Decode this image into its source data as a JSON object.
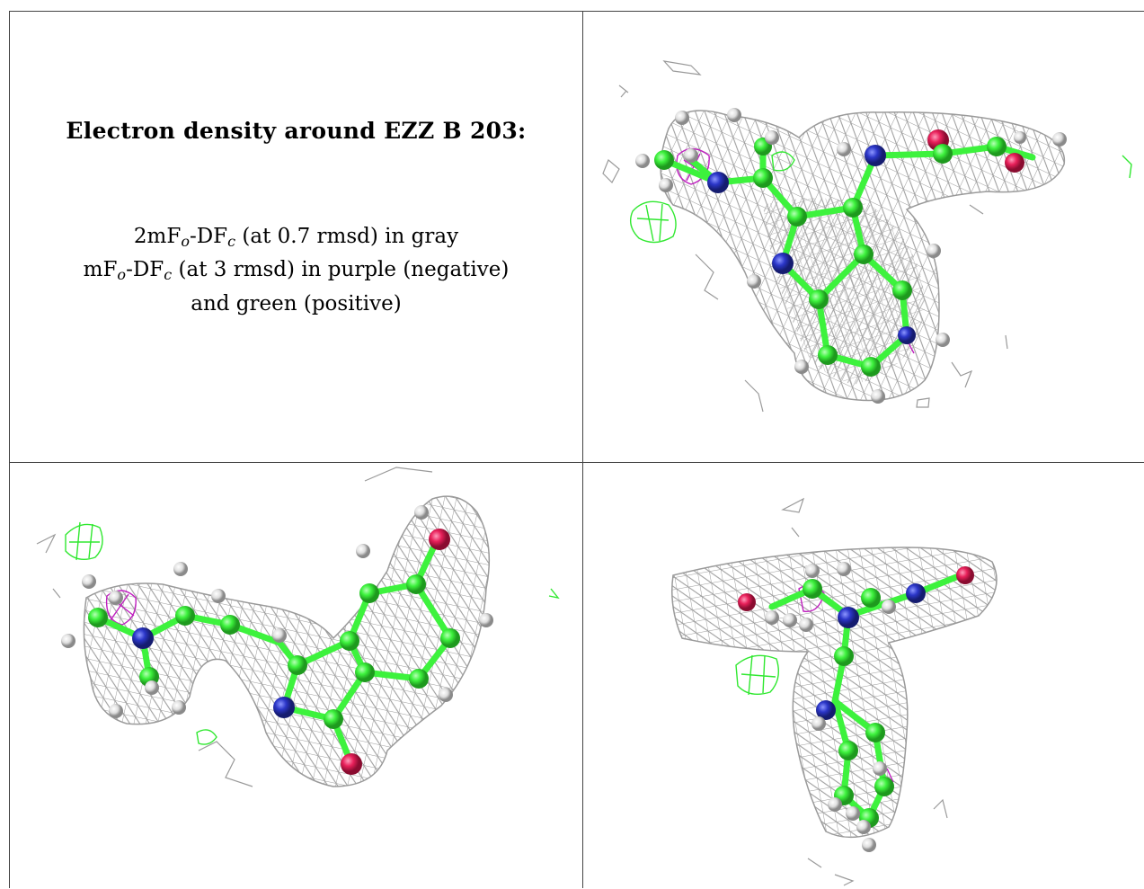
{
  "caption": {
    "title": "Electron density around EZZ B 203:",
    "line1": {
      "a": "2mF",
      "a_sub": "o",
      "b": "-DF",
      "b_sub": "c",
      "rest": " (at 0.7 rmsd) in gray"
    },
    "line2": {
      "a": "mF",
      "a_sub": "o",
      "b": "-DF",
      "b_sub": "c",
      "rest": " (at 3 rmsd) in purple (negative)"
    },
    "line3": "and green (positive)"
  },
  "colors": {
    "mesh_gray": "#9a9a9a",
    "carbon_green": "#3df23d",
    "nitrogen_blue": "#2b36c8",
    "oxygen_red": "#e8205a",
    "hydrogen_white": "#dedede",
    "negative_purple": "#c020c0",
    "positive_green": "#30e830"
  },
  "views": [
    {
      "name": "top-right-view"
    },
    {
      "name": "bottom-left-view"
    },
    {
      "name": "bottom-right-view"
    }
  ]
}
